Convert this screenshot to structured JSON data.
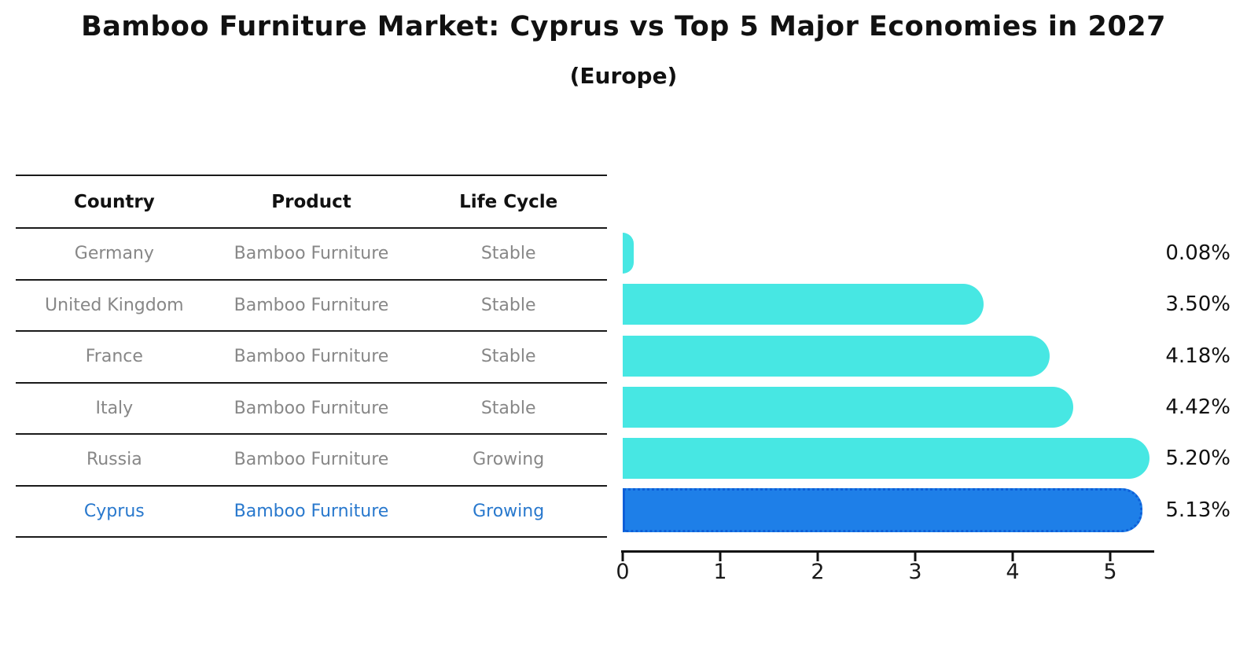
{
  "title": "Bamboo Furniture Market: Cyprus vs Top 5 Major Economies in 2027",
  "subtitle": "(Europe)",
  "table": {
    "headers": {
      "country": "Country",
      "product": "Product",
      "life_cycle": "Life Cycle"
    },
    "rows": [
      {
        "country": "Germany",
        "product": "Bamboo Furniture",
        "life_cycle": "Stable",
        "highlighted": false
      },
      {
        "country": "United Kingdom",
        "product": "Bamboo Furniture",
        "life_cycle": "Stable",
        "highlighted": false
      },
      {
        "country": "France",
        "product": "Bamboo Furniture",
        "life_cycle": "Stable",
        "highlighted": false
      },
      {
        "country": "Italy",
        "product": "Bamboo Furniture",
        "life_cycle": "Stable",
        "highlighted": false
      },
      {
        "country": "Russia",
        "product": "Bamboo Furniture",
        "life_cycle": "Growing",
        "highlighted": false
      },
      {
        "country": "Cyprus",
        "product": "Bamboo Furniture",
        "life_cycle": "Growing",
        "highlighted": true
      }
    ]
  },
  "chart_data": {
    "type": "bar",
    "orientation": "horizontal",
    "categories": [
      "Germany",
      "United Kingdom",
      "France",
      "Italy",
      "Russia",
      "Cyprus"
    ],
    "values": [
      0.08,
      3.5,
      4.18,
      4.42,
      5.2,
      5.13
    ],
    "value_labels": [
      "0.08%",
      "3.50%",
      "4.18%",
      "4.42%",
      "5.20%",
      "5.13%"
    ],
    "x_ticks": [
      "0",
      "1",
      "2",
      "3",
      "4",
      "5"
    ],
    "xlim": [
      0,
      5.45
    ],
    "grid": false,
    "legend": "none",
    "bar_color": "#47e7e3",
    "highlight_bar_color": "#1e7fe8",
    "highlight_border_color": "#0e5fd8",
    "highlight_index": 5,
    "highlight_text_color": "#2878cd",
    "row_text_color": "#878787"
  }
}
